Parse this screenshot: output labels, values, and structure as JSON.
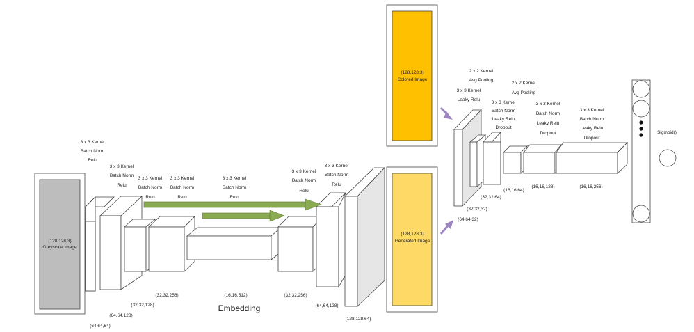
{
  "generator": {
    "input": {
      "shape": "(128,128,3)",
      "name": "Greyscale Image"
    },
    "blocks": [
      {
        "ops": [
          "3 x 3 Kernel",
          "Batch Norm",
          "Relu"
        ],
        "dim": "(64,64,64)"
      },
      {
        "ops": [
          "3 x 3 Kernel",
          "Batch Norm",
          "Relu"
        ],
        "dim": "(64,64,128)"
      },
      {
        "ops": [
          "3 x 3 Kernel",
          "Batch Norm",
          "Relu"
        ],
        "dim": "(32,32,128)"
      },
      {
        "ops": [
          "3 x 3 Kernel",
          "Batch Norm",
          "Relu"
        ],
        "dim": "(32,32,256)"
      },
      {
        "ops": [
          "3 x 3 Kernel",
          "Batch Norm",
          "Relu"
        ],
        "dim": "(16,16,512)"
      },
      {
        "ops": [
          "3 x 3 Kernel",
          "Batch Norm",
          "Relu"
        ],
        "dim": "(32,32,256)"
      },
      {
        "ops": [
          "3 x 3 Kernel",
          "Batch Norm",
          "Relu"
        ],
        "dim": "(64,64,128)"
      },
      {
        "ops": [],
        "dim": "(128,128,64)"
      }
    ],
    "embedding_label": "Embedding"
  },
  "colored": {
    "shape": "(128,128,3)",
    "name": "Colored Image"
  },
  "generated": {
    "shape": "(128,128,3)",
    "name": "Generated Image"
  },
  "discriminator": {
    "blocks": [
      {
        "ops": [
          "3 x 3 Kernel",
          "Leaky Relu"
        ],
        "dim": "(64,64,32)"
      },
      {
        "ops": [
          "2 x 2 Kernel",
          "Avg Pooling"
        ],
        "dim": "(32,32,32)"
      },
      {
        "ops": [
          "3 x 3 Kernel",
          "Batch Norm",
          "Leaky Relu",
          "Dropout"
        ],
        "dim": "(32,32,64)"
      },
      {
        "ops": [
          "2 x 2 Kernel",
          "Avg Pooling"
        ],
        "dim": "(16,16,64)"
      },
      {
        "ops": [
          "3 x 3 Kernel",
          "Batch Norm",
          "Leaky Relu",
          "Dropout"
        ],
        "dim": "(16,16,128)"
      },
      {
        "ops": [
          "3 x 3 Kernel",
          "Batch Norm",
          "Leaky Relu",
          "Dropout"
        ],
        "dim": "(16,16,256)"
      }
    ],
    "output": {
      "label": "Sigmoid()"
    }
  },
  "colors": {
    "input": "#bdbdbd",
    "colored": "#ffc000",
    "generated": "#ffd966",
    "skip": "#8aab52",
    "arrow": "#9c84c0"
  }
}
